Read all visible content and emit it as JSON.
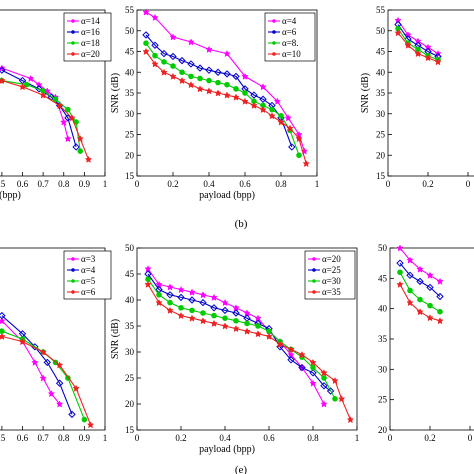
{
  "chart_data": [
    {
      "type": "line",
      "xlabel": "(bpp)",
      "ylabel": "",
      "ylim": [
        15,
        55
      ],
      "xlim": [
        0,
        1
      ],
      "xticks": [
        ".5",
        "0.6",
        "0.7",
        "0.8",
        "0.9",
        "1"
      ],
      "yticks": [],
      "series": [
        {
          "name": "α=14",
          "color": "#ff00ff",
          "marker": "star",
          "x": [
            0.5,
            0.64,
            0.68,
            0.72,
            0.76,
            0.8,
            0.82
          ],
          "y": [
            41,
            38.5,
            37,
            35.5,
            34,
            28,
            24
          ]
        },
        {
          "name": "α=16",
          "color": "#0000cc",
          "marker": "diamond",
          "x": [
            0.5,
            0.6,
            0.68,
            0.74,
            0.78,
            0.82,
            0.86
          ],
          "y": [
            40.5,
            38,
            36,
            34,
            32,
            29,
            22
          ]
        },
        {
          "name": "α=18",
          "color": "#00cc00",
          "marker": "circle",
          "x": [
            0.5,
            0.62,
            0.7,
            0.76,
            0.82,
            0.86,
            0.88
          ],
          "y": [
            38,
            37,
            35.5,
            33.5,
            31,
            28,
            21
          ]
        },
        {
          "name": "α=20",
          "color": "#ee2222",
          "marker": "star",
          "x": [
            0.5,
            0.6,
            0.7,
            0.78,
            0.84,
            0.88,
            0.92
          ],
          "y": [
            38,
            36.5,
            34.5,
            32,
            29,
            24,
            19
          ]
        }
      ]
    },
    {
      "type": "line",
      "xlabel": "payload (bpp)",
      "ylabel": "SNR (dB)",
      "ylim": [
        15,
        55
      ],
      "xlim": [
        0,
        1
      ],
      "xticks": [
        "0",
        "0.2",
        "0.4",
        "0.6",
        "0.8",
        "1"
      ],
      "yticks": [
        "15",
        "20",
        "25",
        "30",
        "35",
        "40",
        "45",
        "50",
        "55"
      ],
      "series": [
        {
          "name": "α=4",
          "color": "#ff00ff",
          "marker": "star",
          "x": [
            0.05,
            0.1,
            0.2,
            0.3,
            0.4,
            0.5,
            0.6,
            0.7,
            0.78,
            0.84,
            0.9,
            0.93
          ],
          "y": [
            54.5,
            53.2,
            48.5,
            47.3,
            45.5,
            44.5,
            39,
            36.5,
            33,
            29,
            25,
            21
          ]
        },
        {
          "name": "α=6",
          "color": "#0000cc",
          "marker": "diamond",
          "x": [
            0.05,
            0.1,
            0.15,
            0.2,
            0.25,
            0.3,
            0.35,
            0.4,
            0.45,
            0.5,
            0.55,
            0.6,
            0.65,
            0.7,
            0.75,
            0.8,
            0.86
          ],
          "y": [
            49,
            46.5,
            44.5,
            43.8,
            42.8,
            42,
            41,
            40.5,
            40,
            39.6,
            39,
            36,
            34.5,
            33.5,
            32,
            29,
            22
          ]
        },
        {
          "name": "α=8.",
          "color": "#00cc00",
          "marker": "circle",
          "x": [
            0.05,
            0.1,
            0.15,
            0.2,
            0.25,
            0.3,
            0.35,
            0.4,
            0.45,
            0.5,
            0.55,
            0.6,
            0.65,
            0.7,
            0.75,
            0.8,
            0.85,
            0.9
          ],
          "y": [
            47,
            44,
            42.5,
            41.5,
            40,
            39,
            38.5,
            38,
            37.5,
            37,
            36,
            35,
            33,
            32,
            31,
            29.5,
            26,
            20
          ]
        },
        {
          "name": "α=10",
          "color": "#ee2222",
          "marker": "star",
          "x": [
            0.05,
            0.1,
            0.15,
            0.2,
            0.25,
            0.3,
            0.35,
            0.4,
            0.45,
            0.5,
            0.55,
            0.6,
            0.65,
            0.7,
            0.75,
            0.8,
            0.85,
            0.9,
            0.94
          ],
          "y": [
            45,
            42,
            40,
            39,
            38,
            37,
            36,
            35.5,
            35,
            34.5,
            34,
            33,
            32,
            31,
            29.5,
            28,
            26.5,
            24,
            18
          ]
        }
      ]
    },
    {
      "type": "line",
      "xlabel": "",
      "ylabel": "SNR (dB)",
      "ylim": [
        15,
        55
      ],
      "xlim": [
        0,
        0.26
      ],
      "xticks": [
        "0",
        "0.2",
        "0"
      ],
      "yticks": [
        "15",
        "20",
        "25",
        "30",
        "35",
        "40",
        "45",
        "50",
        "55"
      ],
      "series": [
        {
          "name": "",
          "color": "#ff00ff",
          "marker": "star",
          "x": [
            0.05,
            0.1,
            0.15,
            0.2,
            0.25
          ],
          "y": [
            52.5,
            49,
            47.5,
            46,
            44.5
          ]
        },
        {
          "name": "",
          "color": "#0000cc",
          "marker": "diamond",
          "x": [
            0.05,
            0.1,
            0.15,
            0.2,
            0.25
          ],
          "y": [
            51.5,
            48,
            46.5,
            45,
            43.8
          ]
        },
        {
          "name": "",
          "color": "#00cc00",
          "marker": "circle",
          "x": [
            0.05,
            0.1,
            0.15,
            0.2,
            0.25
          ],
          "y": [
            50.5,
            47,
            45.5,
            44,
            43
          ]
        },
        {
          "name": "",
          "color": "#ee2222",
          "marker": "star",
          "x": [
            0.05,
            0.1,
            0.15,
            0.2,
            0.25
          ],
          "y": [
            49.5,
            46.5,
            44.5,
            43.5,
            42.5
          ]
        }
      ]
    },
    {
      "type": "line",
      "xlabel": "",
      "ylabel": "",
      "ylim": [
        15,
        50
      ],
      "xlim": [
        0,
        1
      ],
      "xticks": [
        ".5",
        "0.6",
        "0.7",
        "0.8",
        "0.9",
        "1"
      ],
      "yticks": [],
      "series": [
        {
          "name": "α=3",
          "color": "#ff00ff",
          "marker": "star",
          "x": [
            0.5,
            0.6,
            0.66,
            0.7,
            0.74,
            0.78
          ],
          "y": [
            36,
            32,
            28,
            25,
            22,
            20
          ]
        },
        {
          "name": "α=4",
          "color": "#0000cc",
          "marker": "diamond",
          "x": [
            0.5,
            0.6,
            0.66,
            0.72,
            0.78,
            0.84
          ],
          "y": [
            37,
            33.5,
            31,
            28,
            24,
            18
          ]
        },
        {
          "name": "α=5",
          "color": "#00cc00",
          "marker": "circle",
          "x": [
            0.5,
            0.6,
            0.7,
            0.76,
            0.82,
            0.9
          ],
          "y": [
            34,
            32.5,
            30,
            28,
            25,
            17
          ]
        },
        {
          "name": "α=6",
          "color": "#ee2222",
          "marker": "star",
          "x": [
            0.5,
            0.6,
            0.7,
            0.78,
            0.86,
            0.93
          ],
          "y": [
            33,
            32,
            30,
            27.5,
            23,
            16
          ]
        }
      ]
    },
    {
      "type": "line",
      "xlabel": "payload (bpp)",
      "ylabel": "SNR (dB)",
      "ylim": [
        15,
        50
      ],
      "xlim": [
        0,
        1
      ],
      "xticks": [
        "0",
        "0.2",
        "0.4",
        "0.6",
        "0.8",
        "1"
      ],
      "yticks": [
        "15",
        "20",
        "25",
        "30",
        "35",
        "40",
        "45",
        "50"
      ],
      "series": [
        {
          "name": "α=20",
          "color": "#ff00ff",
          "marker": "star",
          "x": [
            0.05,
            0.1,
            0.15,
            0.2,
            0.25,
            0.3,
            0.35,
            0.4,
            0.45,
            0.5,
            0.55,
            0.6,
            0.65,
            0.7,
            0.75,
            0.8,
            0.85
          ],
          "y": [
            46,
            43,
            42.5,
            42,
            41.5,
            41,
            40.5,
            39.5,
            38.5,
            37.5,
            36.5,
            34,
            32,
            29.5,
            27,
            24,
            20
          ]
        },
        {
          "name": "α=25",
          "color": "#0000cc",
          "marker": "diamond",
          "x": [
            0.05,
            0.1,
            0.15,
            0.2,
            0.25,
            0.3,
            0.35,
            0.4,
            0.45,
            0.5,
            0.55,
            0.6,
            0.65,
            0.7,
            0.75,
            0.8,
            0.85,
            0.88
          ],
          "y": [
            45,
            42,
            41,
            40.5,
            40,
            39.5,
            38.5,
            38,
            37.5,
            36.5,
            35.5,
            34.5,
            31,
            28.5,
            27,
            26,
            23.5,
            22.5
          ]
        },
        {
          "name": "α=30",
          "color": "#00cc00",
          "marker": "circle",
          "x": [
            0.05,
            0.1,
            0.15,
            0.2,
            0.25,
            0.3,
            0.35,
            0.4,
            0.45,
            0.5,
            0.55,
            0.6,
            0.65,
            0.7,
            0.75,
            0.8,
            0.85,
            0.9
          ],
          "y": [
            44,
            41,
            39.5,
            38.5,
            38,
            37.5,
            37,
            36.5,
            36,
            35.5,
            35,
            34,
            32,
            30.5,
            29,
            27,
            25,
            21
          ]
        },
        {
          "name": "α=35",
          "color": "#ee2222",
          "marker": "star",
          "x": [
            0.05,
            0.1,
            0.15,
            0.2,
            0.25,
            0.3,
            0.35,
            0.4,
            0.45,
            0.5,
            0.55,
            0.6,
            0.65,
            0.7,
            0.75,
            0.8,
            0.85,
            0.9,
            0.93,
            0.97
          ],
          "y": [
            43,
            39.5,
            38,
            37,
            36.5,
            36,
            35.5,
            35,
            34.5,
            34,
            33.5,
            33,
            31.5,
            30.5,
            29.5,
            28,
            26,
            24.5,
            21,
            17
          ]
        }
      ]
    },
    {
      "type": "line",
      "xlabel": "",
      "ylabel": "",
      "ylim": [
        20,
        50
      ],
      "xlim": [
        0,
        0.26
      ],
      "xticks": [
        "0",
        "0.2",
        "0"
      ],
      "yticks": [
        "20",
        "25",
        "30",
        "35",
        "40",
        "45",
        "50"
      ],
      "series": [
        {
          "name": "",
          "color": "#ff00ff",
          "marker": "star",
          "x": [
            0.05,
            0.1,
            0.15,
            0.2,
            0.25
          ],
          "y": [
            50,
            48,
            46.5,
            45.5,
            44.5
          ]
        },
        {
          "name": "",
          "color": "#0000cc",
          "marker": "diamond",
          "x": [
            0.05,
            0.1,
            0.15,
            0.2,
            0.25
          ],
          "y": [
            47.5,
            45.5,
            44.5,
            43.5,
            42
          ]
        },
        {
          "name": "",
          "color": "#00cc00",
          "marker": "circle",
          "x": [
            0.05,
            0.1,
            0.15,
            0.2,
            0.25
          ],
          "y": [
            46,
            43,
            41.5,
            40.5,
            39.5
          ]
        },
        {
          "name": "",
          "color": "#ee2222",
          "marker": "star",
          "x": [
            0.05,
            0.1,
            0.15,
            0.2,
            0.25
          ],
          "y": [
            44,
            41,
            39.5,
            38.5,
            38
          ]
        }
      ]
    }
  ],
  "captions": [
    "(b)",
    "(e)"
  ]
}
